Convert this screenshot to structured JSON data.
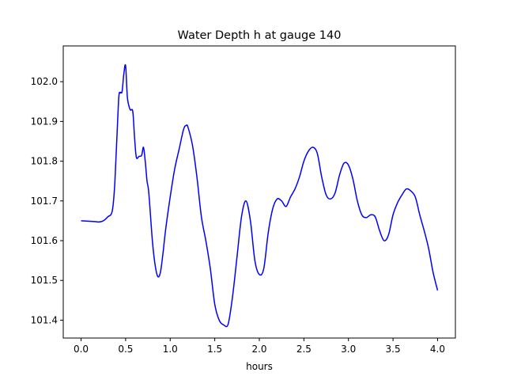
{
  "chart_data": {
    "type": "line",
    "title": "Water Depth h at gauge 140",
    "xlabel": "hours",
    "ylabel": "",
    "xlim": [
      -0.2,
      4.2
    ],
    "ylim": [
      101.355,
      102.09
    ],
    "xticks": [
      0.0,
      0.5,
      1.0,
      1.5,
      2.0,
      2.5,
      3.0,
      3.5,
      4.0
    ],
    "xtick_labels": [
      "0.0",
      "0.5",
      "1.0",
      "1.5",
      "2.0",
      "2.5",
      "3.0",
      "3.5",
      "4.0"
    ],
    "yticks": [
      101.4,
      101.5,
      101.6,
      101.7,
      101.8,
      101.9,
      102.0
    ],
    "ytick_labels": [
      "101.4",
      "101.5",
      "101.6",
      "101.7",
      "101.8",
      "101.9",
      "102.0"
    ],
    "grid": false,
    "series": [
      {
        "color": "#0000ff",
        "x": [
          0.0,
          0.15,
          0.2,
          0.25,
          0.3,
          0.35,
          0.38,
          0.42,
          0.44,
          0.46,
          0.48,
          0.5,
          0.52,
          0.55,
          0.58,
          0.6,
          0.62,
          0.65,
          0.68,
          0.7,
          0.72,
          0.74,
          0.76,
          0.8,
          0.83,
          0.86,
          0.89,
          0.92,
          0.95,
          1.0,
          1.05,
          1.1,
          1.15,
          1.18,
          1.2,
          1.25,
          1.3,
          1.35,
          1.4,
          1.45,
          1.5,
          1.55,
          1.6,
          1.65,
          1.7,
          1.75,
          1.8,
          1.85,
          1.9,
          1.95,
          2.0,
          2.05,
          2.1,
          2.15,
          2.2,
          2.25,
          2.3,
          2.35,
          2.4,
          2.45,
          2.5,
          2.55,
          2.6,
          2.65,
          2.7,
          2.75,
          2.8,
          2.85,
          2.9,
          2.95,
          3.0,
          3.05,
          3.1,
          3.15,
          3.2,
          3.25,
          3.3,
          3.35,
          3.4,
          3.45,
          3.5,
          3.55,
          3.6,
          3.65,
          3.7,
          3.75,
          3.8,
          3.85,
          3.9,
          3.95,
          4.0
        ],
        "y": [
          101.65,
          101.648,
          101.647,
          101.65,
          101.66,
          101.675,
          101.75,
          101.95,
          101.972,
          101.975,
          102.02,
          102.04,
          101.96,
          101.93,
          101.925,
          101.86,
          101.81,
          101.812,
          101.815,
          101.835,
          101.8,
          101.75,
          101.72,
          101.6,
          101.54,
          101.51,
          101.52,
          101.57,
          101.63,
          101.71,
          101.78,
          101.83,
          101.88,
          101.89,
          101.885,
          101.84,
          101.76,
          101.66,
          101.6,
          101.53,
          101.44,
          101.4,
          101.388,
          101.39,
          101.46,
          101.56,
          101.66,
          101.7,
          101.65,
          101.55,
          101.515,
          101.53,
          101.62,
          101.68,
          101.705,
          101.7,
          101.686,
          101.71,
          101.73,
          101.76,
          101.8,
          101.825,
          101.835,
          101.82,
          101.76,
          101.715,
          101.705,
          101.72,
          101.765,
          101.795,
          101.79,
          101.755,
          101.7,
          101.665,
          101.658,
          101.665,
          101.66,
          101.625,
          101.6,
          101.615,
          101.665,
          101.695,
          101.715,
          101.73,
          101.725,
          101.71,
          101.665,
          101.625,
          101.58,
          101.52,
          101.475
        ]
      }
    ]
  }
}
